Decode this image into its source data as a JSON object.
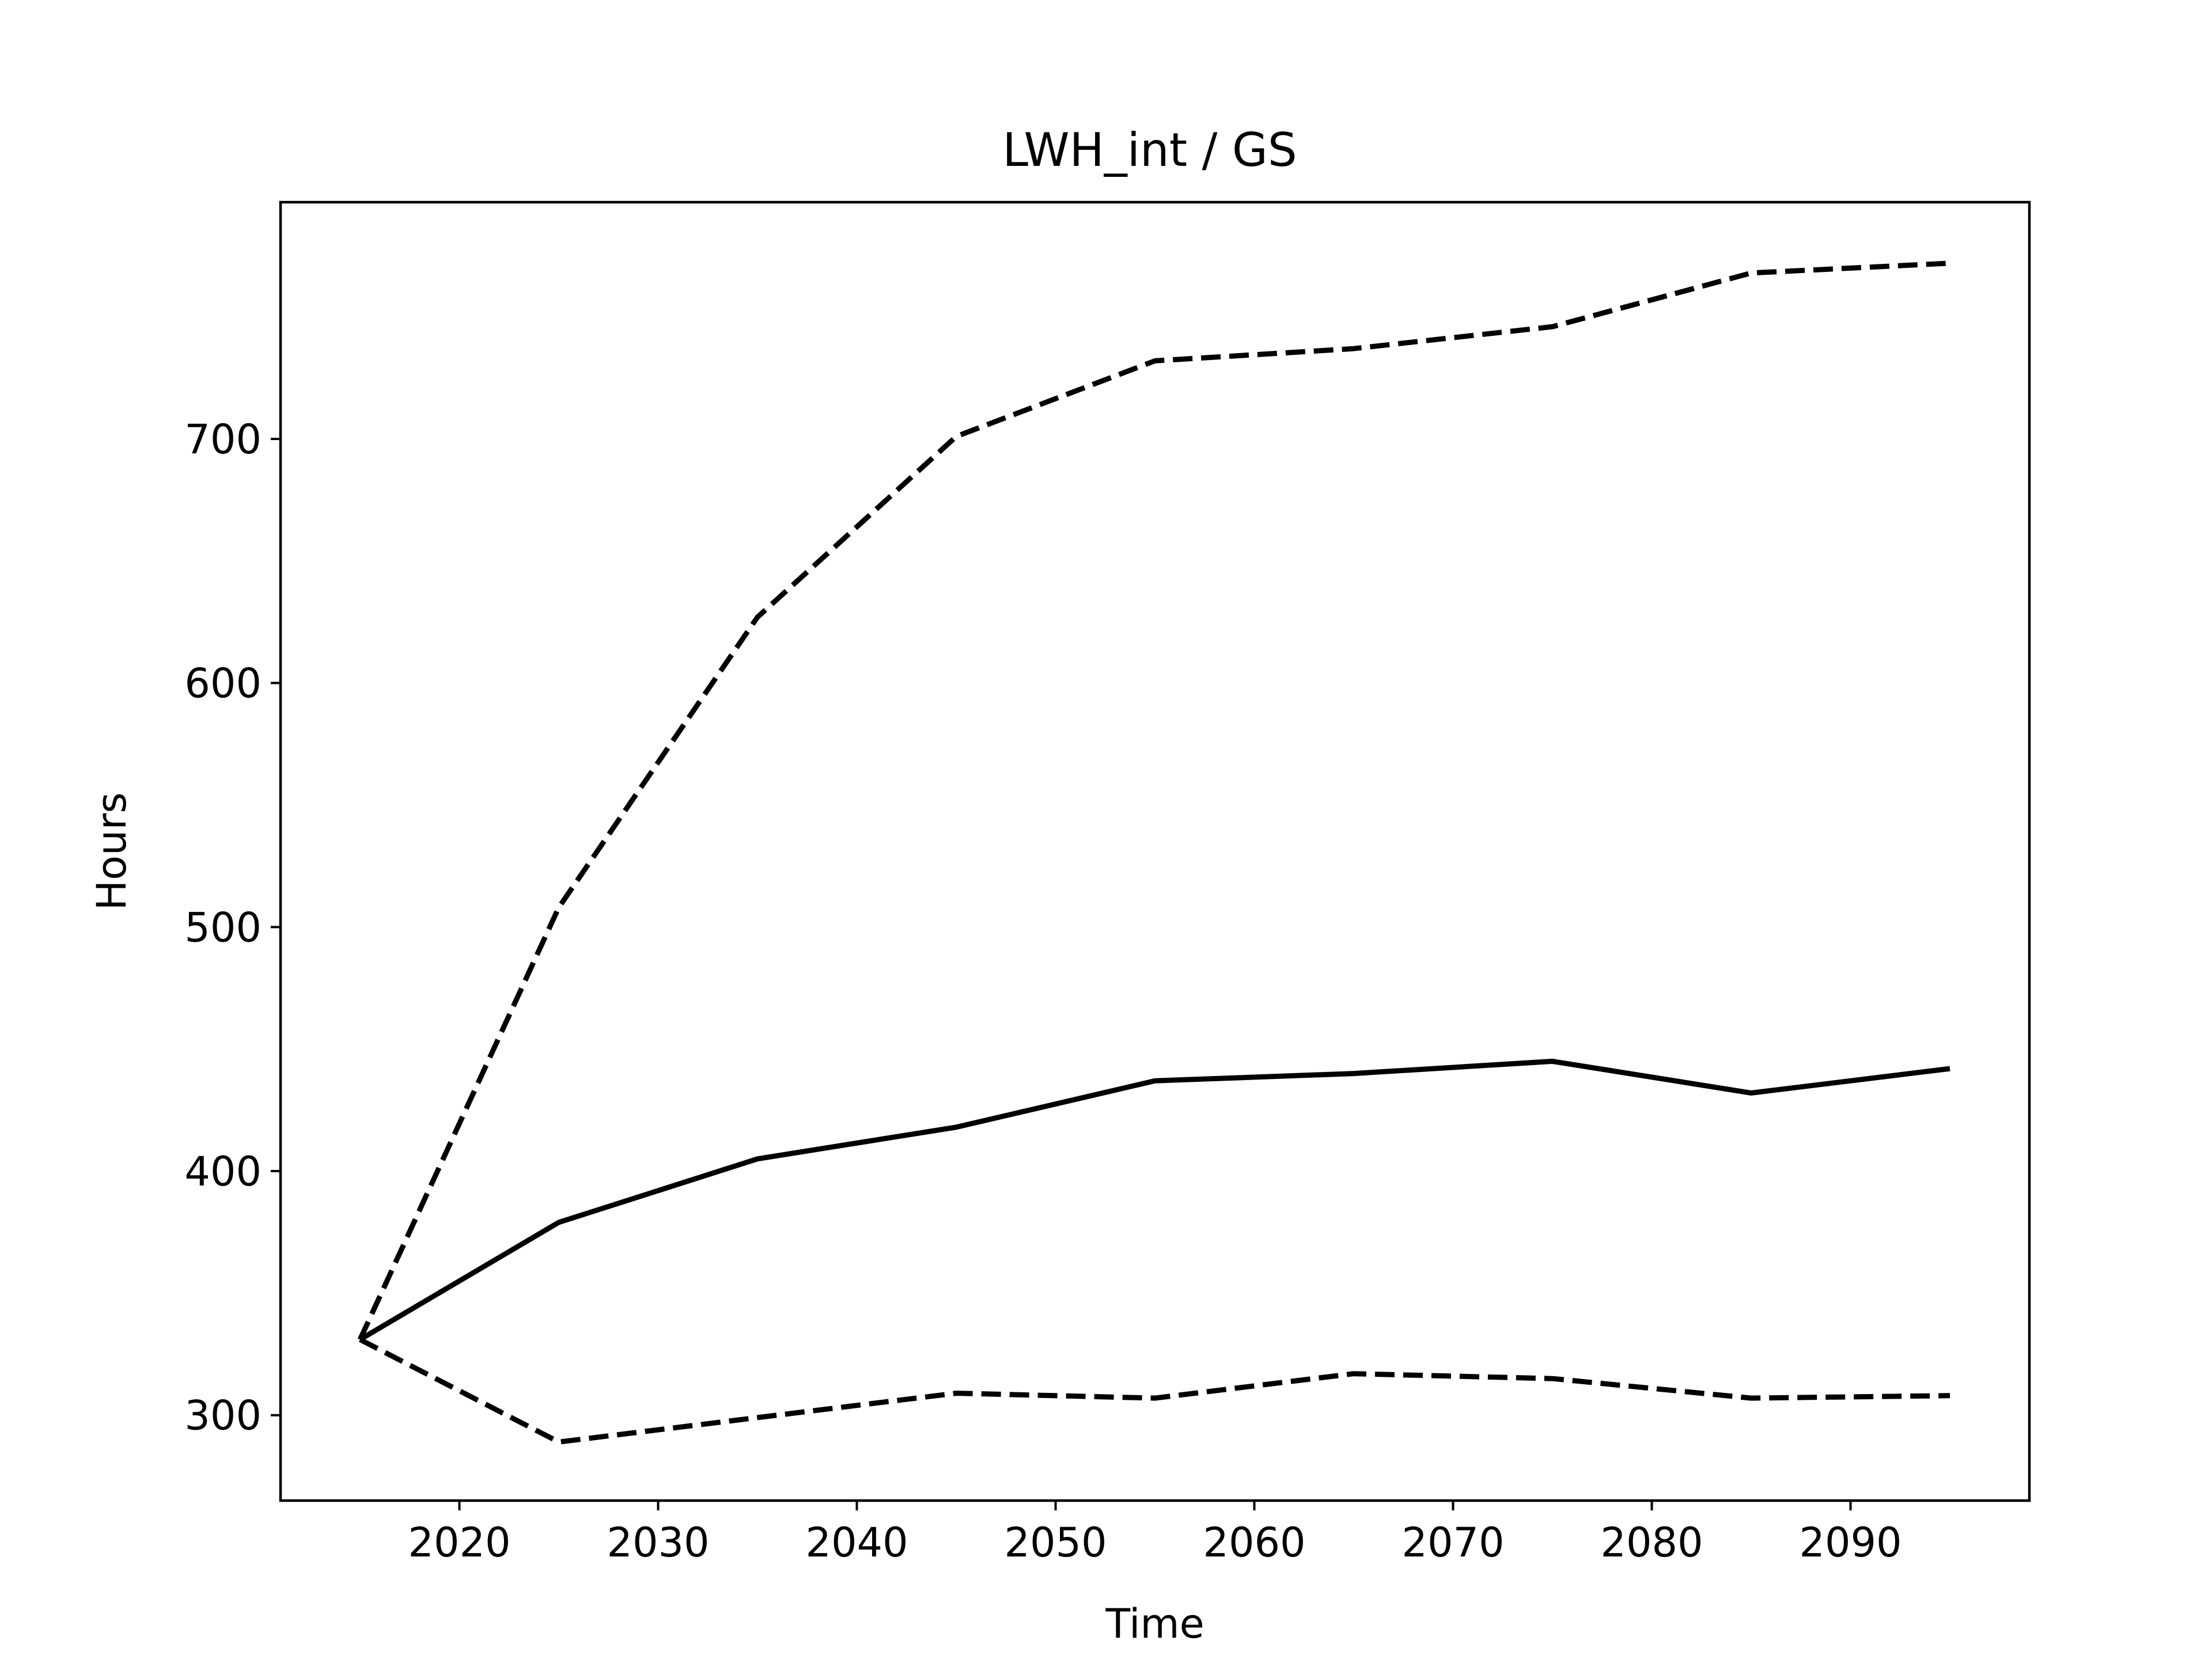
{
  "chart_data": {
    "type": "line",
    "title": "LWH_int / GS",
    "xlabel": "Time",
    "ylabel": "Hours",
    "xlim": [
      2011,
      2099
    ],
    "ylim": [
      265,
      797
    ],
    "xticks": [
      2020,
      2030,
      2040,
      2050,
      2060,
      2070,
      2080,
      2090
    ],
    "yticks": [
      300,
      400,
      500,
      600,
      700
    ],
    "x": [
      2015,
      2025,
      2035,
      2045,
      2055,
      2065,
      2075,
      2085,
      2095
    ],
    "series": [
      {
        "style": "solid",
        "values": [
          331,
          379,
          405,
          418,
          437,
          440,
          445,
          432,
          442
        ]
      },
      {
        "style": "dashed",
        "values": [
          331,
          508,
          627,
          701,
          732,
          737,
          746,
          768,
          772
        ]
      },
      {
        "style": "dashed",
        "values": [
          331,
          289,
          299,
          309,
          307,
          317,
          315,
          307,
          308
        ]
      }
    ],
    "grid": false,
    "colors": {
      "line": "#000000",
      "frame": "#000000",
      "background": "#ffffff"
    }
  }
}
